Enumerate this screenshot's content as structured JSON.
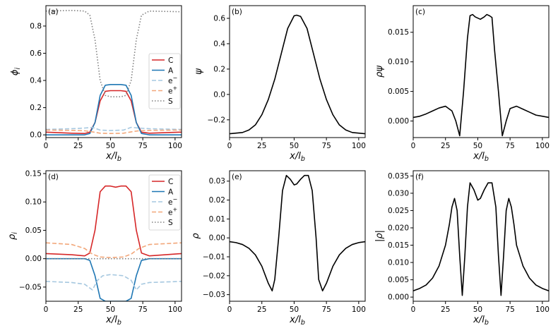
{
  "chart_data": [
    {
      "panel_label": "(a)",
      "type": "line",
      "xlabel": "x/l_b",
      "ylabel": "ϕ_i",
      "xlim": [
        0,
        105
      ],
      "ylim": [
        -0.02,
        0.95
      ],
      "xticks": [
        0,
        25,
        50,
        75,
        100
      ],
      "yticks": [
        0.0,
        0.2,
        0.4,
        0.6,
        0.8
      ],
      "ytick_labels": [
        "0.0",
        "0.2",
        "0.4",
        "0.6",
        "0.8"
      ],
      "legend": {
        "position": "right",
        "entries": [
          "C",
          "A",
          "e⁻",
          "e⁺",
          "S"
        ]
      },
      "series": [
        {
          "name": "C",
          "color": "#d62728",
          "dash": "solid",
          "x": [
            0,
            20,
            30,
            34,
            38,
            42,
            46,
            50,
            54,
            58,
            62,
            66,
            70,
            74,
            80,
            105
          ],
          "y": [
            0.02,
            0.012,
            0.01,
            0.02,
            0.09,
            0.25,
            0.32,
            0.325,
            0.325,
            0.325,
            0.32,
            0.25,
            0.09,
            0.02,
            0.012,
            0.02
          ]
        },
        {
          "name": "A",
          "color": "#1f77b4",
          "dash": "solid",
          "x": [
            0,
            20,
            30,
            34,
            38,
            42,
            46,
            50,
            54,
            58,
            62,
            66,
            70,
            74,
            80,
            105
          ],
          "y": [
            0.0,
            0.0,
            0.0,
            0.01,
            0.09,
            0.29,
            0.365,
            0.37,
            0.37,
            0.37,
            0.365,
            0.29,
            0.09,
            0.01,
            0.0,
            0.0
          ]
        },
        {
          "name": "e⁻",
          "color": "#a6c8e0",
          "dash": "dashed",
          "x": [
            0,
            20,
            30,
            36,
            42,
            50,
            60,
            66,
            72,
            80,
            105
          ],
          "y": [
            0.04,
            0.045,
            0.05,
            0.055,
            0.035,
            0.032,
            0.035,
            0.055,
            0.05,
            0.045,
            0.04
          ]
        },
        {
          "name": "e⁺",
          "color": "#f2a77a",
          "dash": "dashed",
          "x": [
            0,
            20,
            30,
            36,
            42,
            50,
            60,
            66,
            72,
            80,
            105
          ],
          "y": [
            0.035,
            0.033,
            0.03,
            0.022,
            0.012,
            0.01,
            0.012,
            0.022,
            0.03,
            0.033,
            0.035
          ]
        },
        {
          "name": "S",
          "color": "#808080",
          "dash": "dotted",
          "x": [
            0,
            20,
            30,
            34,
            38,
            42,
            46,
            50,
            54,
            58,
            62,
            66,
            70,
            74,
            80,
            105
          ],
          "y": [
            0.91,
            0.915,
            0.91,
            0.88,
            0.7,
            0.4,
            0.29,
            0.28,
            0.28,
            0.28,
            0.29,
            0.4,
            0.7,
            0.88,
            0.91,
            0.905
          ]
        }
      ]
    },
    {
      "panel_label": "(b)",
      "type": "line",
      "xlabel": "x/l_b",
      "ylabel": "ψ",
      "xlim": [
        0,
        105
      ],
      "ylim": [
        -0.34,
        0.7
      ],
      "xticks": [
        0,
        25,
        50,
        75,
        100
      ],
      "yticks": [
        -0.2,
        0.0,
        0.2,
        0.4,
        0.6
      ],
      "ytick_labels": [
        "−0.2",
        "0.0",
        "0.2",
        "0.4",
        "0.6"
      ],
      "series": [
        {
          "name": "ψ",
          "color": "#000000",
          "dash": "solid",
          "x": [
            0,
            10,
            15,
            20,
            25,
            30,
            35,
            40,
            45,
            50,
            52,
            55,
            60,
            65,
            70,
            75,
            80,
            85,
            90,
            95,
            105
          ],
          "y": [
            -0.31,
            -0.3,
            -0.28,
            -0.24,
            -0.16,
            -0.04,
            0.12,
            0.32,
            0.52,
            0.62,
            0.625,
            0.615,
            0.52,
            0.32,
            0.12,
            -0.04,
            -0.16,
            -0.24,
            -0.28,
            -0.3,
            -0.31
          ]
        }
      ]
    },
    {
      "panel_label": "(c)",
      "type": "line",
      "xlabel": "x/l_b",
      "ylabel": "ρψ",
      "xlim": [
        0,
        105
      ],
      "ylim": [
        -0.0028,
        0.0195
      ],
      "xticks": [
        0,
        25,
        50,
        75,
        100
      ],
      "yticks": [
        0.0,
        0.005,
        0.01,
        0.015
      ],
      "ytick_labels": [
        "0.000",
        "0.005",
        "0.010",
        "0.015"
      ],
      "series": [
        {
          "name": "ρψ",
          "color": "#000000",
          "dash": "solid",
          "x": [
            0,
            5,
            10,
            15,
            20,
            25,
            30,
            33,
            36,
            39,
            42,
            44,
            46,
            48,
            52,
            55,
            57,
            59,
            61,
            63,
            66,
            69,
            72,
            75,
            80,
            85,
            90,
            95,
            105
          ],
          "y": [
            0.0006,
            0.0008,
            0.0012,
            0.0017,
            0.0022,
            0.0025,
            0.0017,
            0.0,
            -0.0025,
            0.005,
            0.014,
            0.0178,
            0.018,
            0.0176,
            0.0172,
            0.0176,
            0.018,
            0.0178,
            0.0175,
            0.012,
            0.005,
            -0.0025,
            0.0,
            0.0021,
            0.0025,
            0.002,
            0.0015,
            0.001,
            0.0006
          ]
        }
      ]
    },
    {
      "panel_label": "(d)",
      "type": "line",
      "xlabel": "x/l_b",
      "ylabel": "ρ_i",
      "xlim": [
        0,
        105
      ],
      "ylim": [
        -0.075,
        0.155
      ],
      "xticks": [
        0,
        25,
        50,
        75,
        100
      ],
      "yticks": [
        -0.05,
        0.0,
        0.05,
        0.1,
        0.15
      ],
      "ytick_labels": [
        "−0.05",
        "0.00",
        "0.05",
        "0.10",
        "0.15"
      ],
      "legend": {
        "position": "top-right",
        "entries": [
          "C",
          "A",
          "e⁻",
          "e⁺",
          "S"
        ]
      },
      "series": [
        {
          "name": "C",
          "color": "#d62728",
          "dash": "solid",
          "x": [
            0,
            20,
            30,
            34,
            38,
            42,
            46,
            50,
            54,
            58,
            62,
            66,
            70,
            74,
            80,
            105
          ],
          "y": [
            0.009,
            0.007,
            0.005,
            0.01,
            0.05,
            0.118,
            0.128,
            0.128,
            0.126,
            0.128,
            0.128,
            0.118,
            0.05,
            0.01,
            0.005,
            0.009
          ]
        },
        {
          "name": "A",
          "color": "#1f77b4",
          "dash": "solid",
          "x": [
            0,
            20,
            30,
            34,
            38,
            42,
            46,
            50,
            54,
            58,
            62,
            66,
            70,
            74,
            80,
            105
          ],
          "y": [
            0.0,
            0.0,
            0.0,
            -0.003,
            -0.03,
            -0.07,
            -0.075,
            -0.075,
            -0.075,
            -0.075,
            -0.075,
            -0.07,
            -0.03,
            -0.003,
            0.0,
            0.0
          ]
        },
        {
          "name": "e⁻",
          "color": "#a6c8e0",
          "dash": "dashed",
          "x": [
            0,
            20,
            30,
            36,
            40,
            44,
            50,
            60,
            66,
            70,
            74,
            80,
            105
          ],
          "y": [
            -0.04,
            -0.042,
            -0.045,
            -0.055,
            -0.038,
            -0.03,
            -0.028,
            -0.03,
            -0.038,
            -0.055,
            -0.045,
            -0.042,
            -0.04
          ]
        },
        {
          "name": "e⁺",
          "color": "#f2a77a",
          "dash": "dashed",
          "x": [
            0,
            20,
            30,
            36,
            42,
            50,
            60,
            66,
            72,
            80,
            105
          ],
          "y": [
            0.028,
            0.025,
            0.018,
            0.008,
            0.003,
            0.002,
            0.003,
            0.008,
            0.018,
            0.025,
            0.028
          ]
        },
        {
          "name": "S",
          "color": "#808080",
          "dash": "dotted",
          "x": [
            0,
            105
          ],
          "y": [
            0.0,
            0.0
          ]
        }
      ]
    },
    {
      "panel_label": "(e)",
      "type": "line",
      "xlabel": "x/l_b",
      "ylabel": "ρ",
      "xlim": [
        0,
        105
      ],
      "ylim": [
        -0.0335,
        0.0355
      ],
      "xticks": [
        0,
        25,
        50,
        75,
        100
      ],
      "yticks": [
        -0.03,
        -0.02,
        -0.01,
        0.0,
        0.01,
        0.02,
        0.03
      ],
      "ytick_labels": [
        "−0.03",
        "−0.02",
        "−0.01",
        "0.00",
        "0.01",
        "0.02",
        "0.03"
      ],
      "series": [
        {
          "name": "ρ",
          "color": "#000000",
          "dash": "solid",
          "x": [
            0,
            5,
            10,
            15,
            20,
            25,
            30,
            33,
            35,
            38,
            41,
            44,
            47,
            50,
            52,
            55,
            58,
            61,
            64,
            67,
            69,
            72,
            75,
            80,
            85,
            90,
            95,
            100,
            105
          ],
          "y": [
            -0.002,
            -0.0025,
            -0.0035,
            -0.0055,
            -0.009,
            -0.015,
            -0.024,
            -0.028,
            -0.022,
            0.0,
            0.025,
            0.033,
            0.031,
            0.028,
            0.0285,
            0.031,
            0.033,
            0.033,
            0.025,
            0.0,
            -0.022,
            -0.028,
            -0.024,
            -0.015,
            -0.009,
            -0.0055,
            -0.0035,
            -0.0025,
            -0.002
          ]
        }
      ]
    },
    {
      "panel_label": "(f)",
      "type": "line",
      "xlabel": "x/l_b",
      "ylabel": "|ρ|",
      "xlim": [
        0,
        105
      ],
      "ylim": [
        -0.0012,
        0.0365
      ],
      "xticks": [
        0,
        25,
        50,
        75,
        100
      ],
      "yticks": [
        0.0,
        0.005,
        0.01,
        0.015,
        0.02,
        0.025,
        0.03,
        0.035
      ],
      "ytick_labels": [
        "0.000",
        "0.005",
        "0.010",
        "0.015",
        "0.020",
        "0.025",
        "0.030",
        "0.035"
      ],
      "series": [
        {
          "name": "|ρ|",
          "color": "#000000",
          "dash": "solid",
          "x": [
            0,
            5,
            10,
            15,
            20,
            25,
            28,
            30,
            32,
            34,
            36,
            38,
            40,
            42,
            44,
            47,
            50,
            52,
            55,
            58,
            61,
            64,
            66,
            68,
            70,
            72,
            74,
            76,
            78,
            80,
            85,
            90,
            95,
            100,
            105
          ],
          "y": [
            0.0018,
            0.0025,
            0.0035,
            0.0055,
            0.009,
            0.015,
            0.021,
            0.026,
            0.0285,
            0.025,
            0.012,
            0.0005,
            0.012,
            0.026,
            0.033,
            0.031,
            0.028,
            0.0285,
            0.031,
            0.033,
            0.033,
            0.026,
            0.012,
            0.0005,
            0.012,
            0.025,
            0.0285,
            0.026,
            0.021,
            0.015,
            0.009,
            0.0055,
            0.0035,
            0.0025,
            0.0018
          ]
        }
      ]
    }
  ]
}
